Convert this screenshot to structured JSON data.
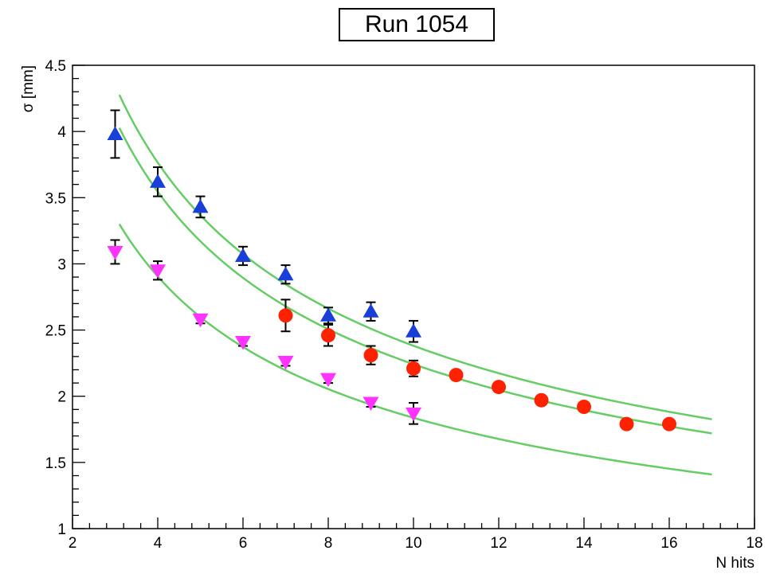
{
  "chart_data": {
    "type": "scatter",
    "title": "Run 1054",
    "xlabel": "N hits",
    "ylabel": "σ [mm]",
    "xlim": [
      2,
      18
    ],
    "ylim": [
      1,
      4.5
    ],
    "x_ticks": [
      "2",
      "4",
      "6",
      "8",
      "10",
      "12",
      "14",
      "16",
      "18"
    ],
    "y_ticks": [
      "1",
      "1.5",
      "2",
      "2.5",
      "3",
      "3.5",
      "4",
      "4.5"
    ],
    "grid": false,
    "series": [
      {
        "marker": "triangle-up",
        "color": "#1a3fd8",
        "points": [
          {
            "x": 3,
            "y": 3.98,
            "err": 0.18
          },
          {
            "x": 4,
            "y": 3.62,
            "err": 0.11
          },
          {
            "x": 5,
            "y": 3.43,
            "err": 0.08
          },
          {
            "x": 6,
            "y": 3.06,
            "err": 0.07
          },
          {
            "x": 7,
            "y": 2.92,
            "err": 0.07
          },
          {
            "x": 8,
            "y": 2.61,
            "err": 0.06
          },
          {
            "x": 9,
            "y": 2.64,
            "err": 0.07
          },
          {
            "x": 10,
            "y": 2.49,
            "err": 0.08
          }
        ]
      },
      {
        "marker": "circle",
        "color": "#ff2200",
        "points": [
          {
            "x": 7,
            "y": 2.61,
            "err": 0.12
          },
          {
            "x": 8,
            "y": 2.46,
            "err": 0.08
          },
          {
            "x": 9,
            "y": 2.31,
            "err": 0.07
          },
          {
            "x": 10,
            "y": 2.21,
            "err": 0.06
          },
          {
            "x": 11,
            "y": 2.16,
            "err": 0.03
          },
          {
            "x": 12,
            "y": 2.07,
            "err": 0.03
          },
          {
            "x": 13,
            "y": 1.97,
            "err": 0.03
          },
          {
            "x": 14,
            "y": 1.92,
            "err": 0.03
          },
          {
            "x": 15,
            "y": 1.79,
            "err": 0.03
          },
          {
            "x": 16,
            "y": 1.79,
            "err": 0.03
          }
        ]
      },
      {
        "marker": "triangle-down",
        "color": "#ff33ff",
        "points": [
          {
            "x": 3,
            "y": 3.09,
            "err": 0.09
          },
          {
            "x": 4,
            "y": 2.95,
            "err": 0.07
          },
          {
            "x": 5,
            "y": 2.58,
            "err": 0.03
          },
          {
            "x": 6,
            "y": 2.41,
            "err": 0.03
          },
          {
            "x": 7,
            "y": 2.26,
            "err": 0.03
          },
          {
            "x": 8,
            "y": 2.13,
            "err": 0.03
          },
          {
            "x": 9,
            "y": 1.95,
            "err": 0.03
          },
          {
            "x": 10,
            "y": 1.87,
            "err": 0.08
          }
        ]
      }
    ],
    "fits": [
      {
        "color": "#66cc66",
        "model": "a/sqrt(N)",
        "a": 7.53,
        "x_range": [
          3.1,
          17
        ]
      },
      {
        "color": "#66cc66",
        "model": "a/sqrt(N)",
        "a": 7.09,
        "x_range": [
          3.1,
          17
        ]
      },
      {
        "color": "#66cc66",
        "model": "a/sqrt(N)",
        "a": 5.81,
        "x_range": [
          3.1,
          17
        ]
      }
    ]
  }
}
